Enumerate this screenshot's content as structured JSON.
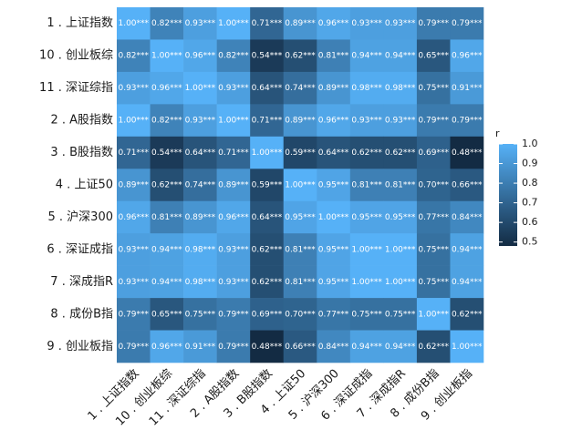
{
  "chart_data": {
    "type": "heatmap",
    "categories": [
      "1 . 上证指数",
      "10 . 创业板综",
      "11 . 深证综指",
      "2 . A股指数",
      "3 . B股指数",
      "4 . 上证50",
      "5 . 沪深300",
      "6 . 深证成指",
      "7 . 深成指R",
      "8 . 成份B指",
      "9 . 创业板指"
    ],
    "values": [
      [
        1.0,
        0.82,
        0.93,
        1.0,
        0.71,
        0.89,
        0.96,
        0.93,
        0.93,
        0.79,
        0.79
      ],
      [
        0.82,
        1.0,
        0.96,
        0.82,
        0.54,
        0.62,
        0.81,
        0.94,
        0.94,
        0.65,
        0.96
      ],
      [
        0.93,
        0.96,
        1.0,
        0.93,
        0.64,
        0.74,
        0.89,
        0.98,
        0.98,
        0.75,
        0.91
      ],
      [
        1.0,
        0.82,
        0.93,
        1.0,
        0.71,
        0.89,
        0.96,
        0.93,
        0.93,
        0.79,
        0.79
      ],
      [
        0.71,
        0.54,
        0.64,
        0.71,
        1.0,
        0.59,
        0.64,
        0.62,
        0.62,
        0.69,
        0.48
      ],
      [
        0.89,
        0.62,
        0.74,
        0.89,
        0.59,
        1.0,
        0.95,
        0.81,
        0.81,
        0.7,
        0.66
      ],
      [
        0.96,
        0.81,
        0.89,
        0.96,
        0.64,
        0.95,
        1.0,
        0.95,
        0.95,
        0.77,
        0.84
      ],
      [
        0.93,
        0.94,
        0.98,
        0.93,
        0.62,
        0.81,
        0.95,
        1.0,
        1.0,
        0.75,
        0.94
      ],
      [
        0.93,
        0.94,
        0.98,
        0.93,
        0.62,
        0.81,
        0.95,
        1.0,
        1.0,
        0.75,
        0.94
      ],
      [
        0.79,
        0.65,
        0.75,
        0.79,
        0.69,
        0.7,
        0.77,
        0.75,
        0.75,
        1.0,
        0.62
      ],
      [
        0.79,
        0.96,
        0.91,
        0.79,
        0.48,
        0.66,
        0.84,
        0.94,
        0.94,
        0.62,
        1.0
      ]
    ],
    "value_labels": [
      [
        "1.00***",
        "0.82***",
        "0.93***",
        "1.00***",
        "0.71***",
        "0.89***",
        "0.96***",
        "0.93***",
        "0.93***",
        "0.79***",
        "0.79***"
      ],
      [
        "0.82***",
        "1.00***",
        "0.96***",
        "0.82***",
        "0.54***",
        "0.62***",
        "0.81***",
        "0.94***",
        "0.94***",
        "0.65***",
        "0.96***"
      ],
      [
        "0.93***",
        "0.96***",
        "1.00***",
        "0.93***",
        "0.64***",
        "0.74***",
        "0.89***",
        "0.98***",
        "0.98***",
        "0.75***",
        "0.91***"
      ],
      [
        "1.00***",
        "0.82***",
        "0.93***",
        "1.00***",
        "0.71***",
        "0.89***",
        "0.96***",
        "0.93***",
        "0.93***",
        "0.79***",
        "0.79***"
      ],
      [
        "0.71***",
        "0.54***",
        "0.64***",
        "0.71***",
        "1.00***",
        "0.59***",
        "0.64***",
        "0.62***",
        "0.62***",
        "0.69***",
        "0.48***"
      ],
      [
        "0.89***",
        "0.62***",
        "0.74***",
        "0.89***",
        "0.59***",
        "1.00***",
        "0.95***",
        "0.81***",
        "0.81***",
        "0.70***",
        "0.66***"
      ],
      [
        "0.96***",
        "0.81***",
        "0.89***",
        "0.96***",
        "0.64***",
        "0.95***",
        "1.00***",
        "0.95***",
        "0.95***",
        "0.77***",
        "0.84***"
      ],
      [
        "0.93***",
        "0.94***",
        "0.98***",
        "0.93***",
        "0.62***",
        "0.81***",
        "0.95***",
        "1.00***",
        "1.00***",
        "0.75***",
        "0.94***"
      ],
      [
        "0.93***",
        "0.94***",
        "0.98***",
        "0.93***",
        "0.62***",
        "0.81***",
        "0.95***",
        "1.00***",
        "1.00***",
        "0.75***",
        "0.94***"
      ],
      [
        "0.79***",
        "0.65***",
        "0.75***",
        "0.79***",
        "0.69***",
        "0.70***",
        "0.77***",
        "0.75***",
        "0.75***",
        "1.00***",
        "0.62***"
      ],
      [
        "0.79***",
        "0.96***",
        "0.91***",
        "0.79***",
        "0.48***",
        "0.66***",
        "0.84***",
        "0.94***",
        "0.94***",
        "0.62***",
        "1.00***"
      ]
    ],
    "legend_title": "r",
    "clim": [
      0.48,
      1.0
    ],
    "cticks": [
      {
        "value": 1.0,
        "label": "1.0"
      },
      0.9,
      0.8,
      0.7,
      0.6,
      0.5
    ],
    "low_color": "#132b43",
    "high_color": "#56b1f7"
  }
}
